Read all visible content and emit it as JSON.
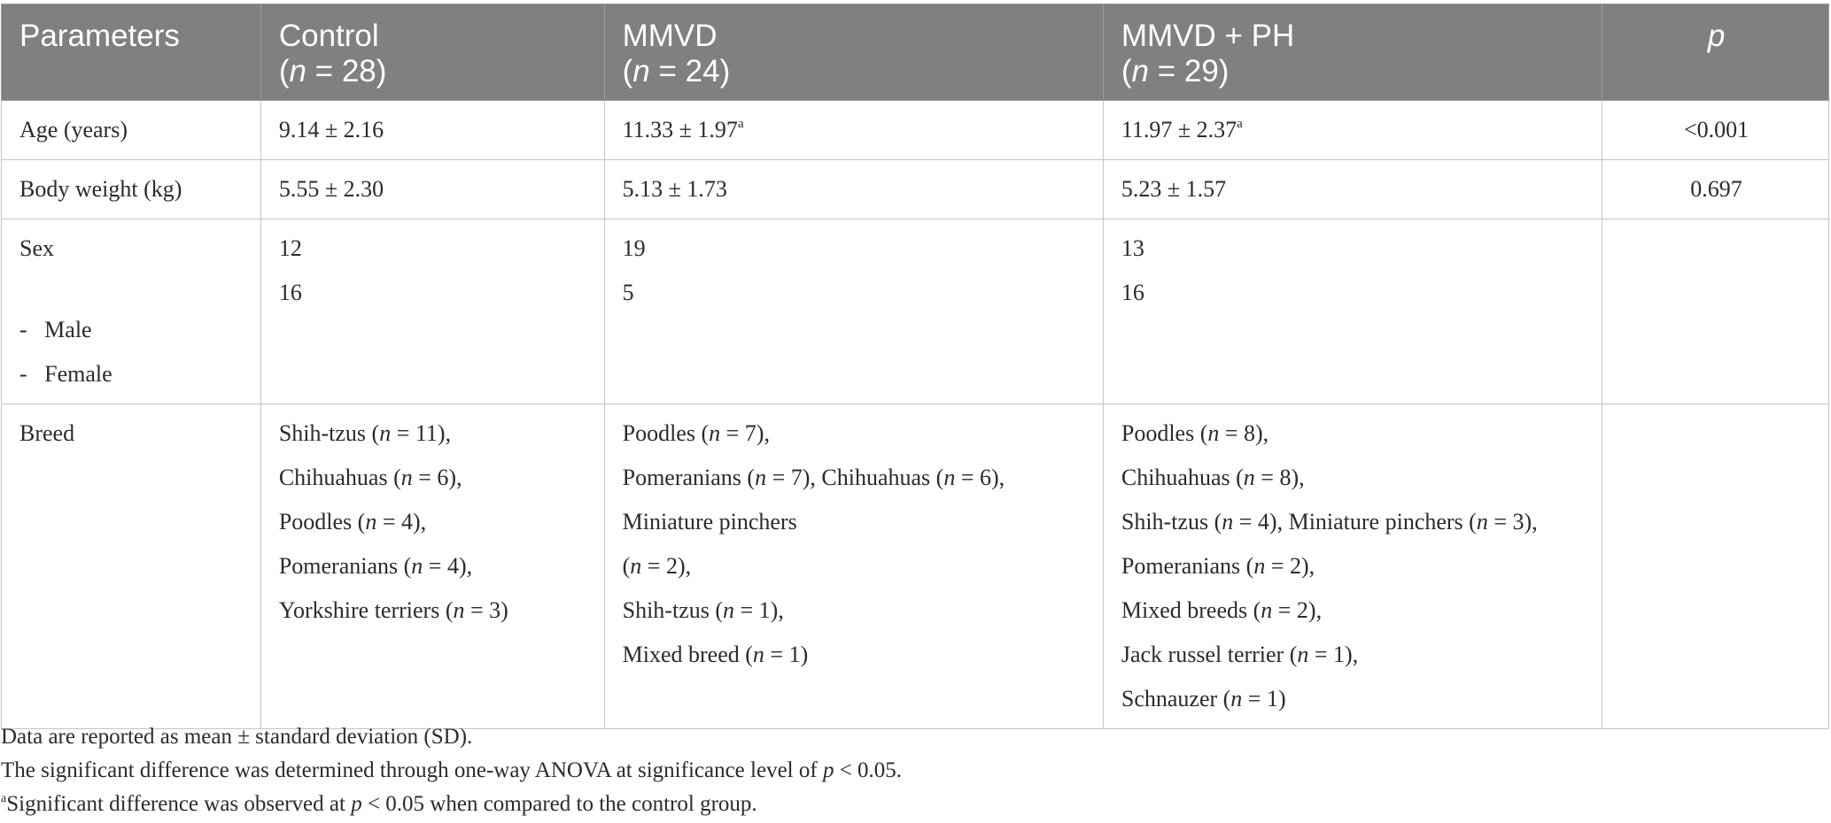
{
  "header": {
    "parameters": "Parameters",
    "groups": [
      {
        "name": "Control",
        "n": "(n = 28)"
      },
      {
        "name": "MMVD",
        "n": "(n = 24)"
      },
      {
        "name": "MMVD + PH",
        "n": "(n = 29)"
      }
    ],
    "p": "p"
  },
  "rows": {
    "age": {
      "label": "Age (years)",
      "control": "9.14 ± 2.16",
      "mmvd": "11.33 ± 1.97",
      "mmvd_sup": "a",
      "mmvd_ph": "11.97 ± 2.37",
      "mmvd_ph_sup": "a",
      "p": "<0.001"
    },
    "body_weight": {
      "label": "Body weight (kg)",
      "control": "5.55 ± 2.30",
      "mmvd": "5.13 ± 1.73",
      "mmvd_ph": "5.23 ± 1.57",
      "p": "0.697"
    },
    "sex": {
      "label": "Sex",
      "sub_labels": [
        "Male",
        "Female"
      ],
      "control": [
        "12",
        "16"
      ],
      "mmvd": [
        "19",
        "5"
      ],
      "mmvd_ph": [
        "13",
        "16"
      ]
    },
    "breed": {
      "label": "Breed",
      "control": [
        "Shih-tzus (n = 11),",
        "Chihuahuas (n = 6),",
        "Poodles (n = 4),",
        "Pomeranians (n = 4),",
        "Yorkshire terriers (n = 3)"
      ],
      "mmvd": [
        "Poodles (n = 7),",
        "Pomeranians (n = 7), Chihuahuas (n = 6),",
        "Miniature pinchers",
        "(n = 2),",
        "Shih-tzus (n = 1),",
        "Mixed breed (n = 1)"
      ],
      "mmvd_ph": [
        "Poodles (n = 8),",
        "Chihuahuas (n = 8),",
        "Shih-tzus (n = 4), Miniature pinchers (n = 3),",
        "Pomeranians (n = 2),",
        "Mixed breeds (n = 2),",
        "Jack russel terrier (n = 1),",
        "Schnauzer (n = 1)"
      ]
    }
  },
  "footnotes": {
    "note1": "Data are reported as mean ± standard deviation (SD).",
    "note2": "The significant difference was determined through one-way ANOVA at significance level of p < 0.05.",
    "note3_sup": "a",
    "note3": "Significant difference was observed at p < 0.05 when compared to the control group."
  }
}
